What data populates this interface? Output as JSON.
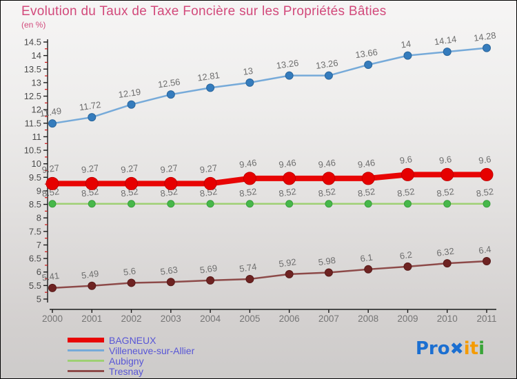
{
  "header": {
    "title": "Evolution du Taux de Taxe Foncière sur les Propriétés Bâties",
    "subtitle": "(en %)",
    "title_color": "#d2497b"
  },
  "chart_data": {
    "type": "line",
    "x": [
      2000,
      2001,
      2002,
      2003,
      2004,
      2005,
      2006,
      2007,
      2008,
      2009,
      2010,
      2011
    ],
    "xlabel": "",
    "ylabel": "",
    "ylim": [
      5,
      14.5
    ],
    "y_major_step": 0.5,
    "y_minor_step": 0.25,
    "grid": false,
    "legend_position": "bottom-left",
    "label_color": "#6e6e6e",
    "tick_label_color": "#4a4a4a",
    "year_label_color": "#757575",
    "axis_color": "#1a1a1a",
    "minor_tick_color": "#cc1111",
    "z_order": [
      1,
      2,
      3,
      0
    ],
    "series": [
      {
        "name": "BAGNEUX",
        "values": [
          9.27,
          9.27,
          9.27,
          9.27,
          9.27,
          9.46,
          9.46,
          9.46,
          9.46,
          9.6,
          9.6,
          9.6
        ],
        "line_color": "#e80505",
        "marker_color": "#e60000",
        "marker_stroke": "#c20000",
        "line_width": 8,
        "marker_radius": 9,
        "label_offset": 17
      },
      {
        "name": "Villeneuve-sur-Allier",
        "values": [
          11.49,
          11.72,
          12.19,
          12.56,
          12.81,
          13,
          13.26,
          13.26,
          13.66,
          14,
          14.14,
          14.28
        ],
        "line_color": "#76aad9",
        "marker_color": "#357cbd",
        "marker_stroke": "#2a669c",
        "line_width": 2.5,
        "marker_radius": 5.5,
        "label_offset": 12
      },
      {
        "name": "Aubigny",
        "values": [
          8.52,
          8.52,
          8.52,
          8.52,
          8.52,
          8.52,
          8.52,
          8.52,
          8.52,
          8.52,
          8.52,
          8.52
        ],
        "line_color": "#9ed073",
        "marker_color": "#47b84a",
        "marker_stroke": "#3a9e3d",
        "line_width": 2.5,
        "marker_radius": 5,
        "label_offset": 12
      },
      {
        "name": "Tresnay",
        "values": [
          5.41,
          5.49,
          5.6,
          5.63,
          5.69,
          5.74,
          5.92,
          5.98,
          6.1,
          6.2,
          6.32,
          6.4
        ],
        "line_color": "#8d4a49",
        "marker_color": "#6e2322",
        "marker_stroke": "#591b1a",
        "line_width": 2.5,
        "marker_radius": 5.5,
        "label_offset": 12
      }
    ]
  },
  "legend": {
    "items": [
      {
        "label": "BAGNEUX",
        "color": "#e80505",
        "thickness": 7
      },
      {
        "label": "Villeneuve-sur-Allier",
        "color": "#76aad9",
        "thickness": 3
      },
      {
        "label": "Aubigny",
        "color": "#9ed073",
        "thickness": 3
      },
      {
        "label": "Tresnay",
        "color": "#8d4a49",
        "thickness": 3
      }
    ],
    "text_color": "#5856d6"
  },
  "logo": {
    "segments": [
      {
        "text": "Pro",
        "color": "#1b6fd1"
      },
      {
        "text": "✖",
        "color": "#1b6fd1"
      },
      {
        "text": "it",
        "color": "#f59b00"
      },
      {
        "text": "i",
        "color": "#38a437"
      }
    ]
  }
}
